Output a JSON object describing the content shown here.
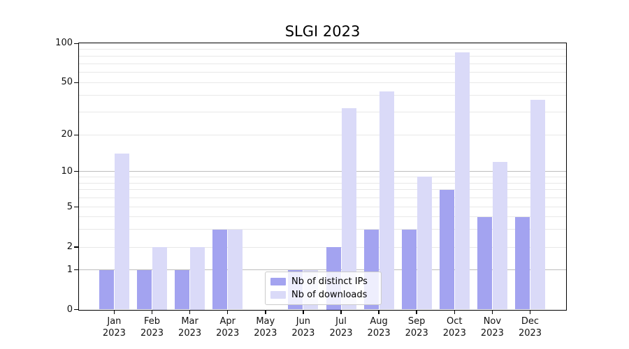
{
  "chart_data": {
    "type": "bar",
    "title": "SLGI 2023",
    "categories": [
      "Jan 2023",
      "Feb 2023",
      "Mar 2023",
      "Apr 2023",
      "May 2023",
      "Jun 2023",
      "Jul 2023",
      "Aug 2023",
      "Sep 2023",
      "Oct 2023",
      "Nov 2023",
      "Dec 2023"
    ],
    "series": [
      {
        "name": "Nb of distinct IPs",
        "color": "#a3a3f0",
        "values": [
          1,
          1,
          1,
          3,
          0,
          1,
          2,
          3,
          3,
          7,
          4,
          4
        ]
      },
      {
        "name": "Nb of downloads",
        "color": "#dadaf8",
        "values": [
          14,
          2,
          2,
          3,
          0,
          1,
          32,
          43,
          9,
          85,
          12,
          37
        ]
      }
    ],
    "yscale": "symlog",
    "ylim": [
      0,
      100
    ],
    "y_ticks": [
      0,
      1,
      2,
      5,
      10,
      20,
      50,
      100
    ],
    "y_major_gridlines": [
      1,
      10
    ],
    "y_minor_gridlines": [
      2,
      3,
      4,
      5,
      6,
      7,
      8,
      9,
      20,
      30,
      40,
      50,
      60,
      70,
      80,
      90
    ],
    "grid": "horizontal",
    "legend_position": "lower center-right"
  },
  "colors": {
    "major_grid": "#bdbdbd",
    "minor_grid": "#e8e8e8",
    "spine": "#000000",
    "text": "#111111",
    "legend_border": "#cbcbcb"
  }
}
